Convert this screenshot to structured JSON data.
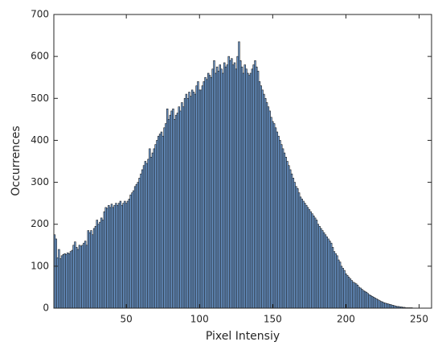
{
  "chart_data": {
    "type": "histogram",
    "xlabel": "Pixel Intensiy",
    "ylabel": "Occurrences",
    "bins": [
      0.5,
      1.5,
      2.5,
      3.5,
      4.5,
      5.5,
      6.5,
      7.5,
      8.5,
      9.5,
      10.5,
      11.5,
      12.5,
      13.5,
      14.5,
      15.5,
      16.5,
      17.5,
      18.5,
      19.5,
      20.5,
      21.5,
      22.5,
      23.5,
      24.5,
      25.5,
      26.5,
      27.5,
      28.5,
      29.5,
      30.5,
      31.5,
      32.5,
      33.5,
      34.5,
      35.5,
      36.5,
      37.5,
      38.5,
      39.5,
      40.5,
      41.5,
      42.5,
      43.5,
      44.5,
      45.5,
      46.5,
      47.5,
      48.5,
      49.5,
      50.5,
      51.5,
      52.5,
      53.5,
      54.5,
      55.5,
      56.5,
      57.5,
      58.5,
      59.5,
      60.5,
      61.5,
      62.5,
      63.5,
      64.5,
      65.5,
      66.5,
      67.5,
      68.5,
      69.5,
      70.5,
      71.5,
      72.5,
      73.5,
      74.5,
      75.5,
      76.5,
      77.5,
      78.5,
      79.5,
      80.5,
      81.5,
      82.5,
      83.5,
      84.5,
      85.5,
      86.5,
      87.5,
      88.5,
      89.5,
      90.5,
      91.5,
      92.5,
      93.5,
      94.5,
      95.5,
      96.5,
      97.5,
      98.5,
      99.5,
      100.5,
      101.5,
      102.5,
      103.5,
      104.5,
      105.5,
      106.5,
      107.5,
      108.5,
      109.5,
      110.5,
      111.5,
      112.5,
      113.5,
      114.5,
      115.5,
      116.5,
      117.5,
      118.5,
      119.5,
      120.5,
      121.5,
      122.5,
      123.5,
      124.5,
      125.5,
      126.5,
      127.5,
      128.5,
      129.5,
      130.5,
      131.5,
      132.5,
      133.5,
      134.5,
      135.5,
      136.5,
      137.5,
      138.5,
      139.5,
      140.5,
      141.5,
      142.5,
      143.5,
      144.5,
      145.5,
      146.5,
      147.5,
      148.5,
      149.5,
      150.5,
      151.5,
      152.5,
      153.5,
      154.5,
      155.5,
      156.5,
      157.5,
      158.5,
      159.5,
      160.5,
      161.5,
      162.5,
      163.5,
      164.5,
      165.5,
      166.5,
      167.5,
      168.5,
      169.5,
      170.5,
      171.5,
      172.5,
      173.5,
      174.5,
      175.5,
      176.5,
      177.5,
      178.5,
      179.5,
      180.5,
      181.5,
      182.5,
      183.5,
      184.5,
      185.5,
      186.5,
      187.5,
      188.5,
      189.5,
      190.5,
      191.5,
      192.5,
      193.5,
      194.5,
      195.5,
      196.5,
      197.5,
      198.5,
      199.5,
      200.5,
      201.5,
      202.5,
      203.5,
      204.5,
      205.5,
      206.5,
      207.5,
      208.5,
      209.5,
      210.5,
      211.5,
      212.5,
      213.5,
      214.5,
      215.5,
      216.5,
      217.5,
      218.5,
      219.5,
      220.5,
      221.5,
      222.5,
      223.5,
      224.5,
      225.5,
      226.5,
      227.5,
      228.5,
      229.5,
      230.5,
      231.5,
      232.5,
      233.5,
      234.5,
      235.5,
      236.5,
      237.5,
      238.5,
      239.5,
      240.5,
      241.5,
      242.5,
      243.5,
      244.5,
      245.5,
      246.5,
      247.5,
      248.5,
      249.5,
      250.5,
      251.5,
      252.5,
      253.5,
      254.5,
      255.5,
      256.5
    ],
    "values": [
      175,
      165,
      120,
      140,
      118,
      125,
      128,
      130,
      128,
      132,
      130,
      135,
      138,
      150,
      158,
      145,
      140,
      150,
      148,
      150,
      155,
      160,
      150,
      185,
      180,
      185,
      175,
      190,
      195,
      210,
      200,
      205,
      215,
      210,
      230,
      240,
      238,
      245,
      240,
      248,
      240,
      245,
      250,
      245,
      250,
      255,
      245,
      250,
      255,
      250,
      255,
      260,
      270,
      275,
      280,
      290,
      295,
      300,
      310,
      320,
      330,
      340,
      350,
      345,
      355,
      380,
      360,
      370,
      380,
      390,
      400,
      410,
      415,
      420,
      410,
      430,
      440,
      475,
      450,
      460,
      470,
      475,
      450,
      460,
      465,
      480,
      470,
      490,
      480,
      500,
      510,
      500,
      515,
      505,
      520,
      515,
      510,
      530,
      540,
      520,
      520,
      530,
      540,
      550,
      545,
      560,
      555,
      550,
      570,
      590,
      560,
      575,
      565,
      580,
      570,
      560,
      585,
      575,
      580,
      600,
      590,
      595,
      580,
      585,
      570,
      600,
      635,
      590,
      575,
      560,
      580,
      570,
      560,
      555,
      560,
      570,
      580,
      590,
      575,
      565,
      540,
      530,
      520,
      510,
      500,
      490,
      480,
      470,
      455,
      445,
      440,
      430,
      420,
      410,
      400,
      390,
      380,
      370,
      360,
      350,
      340,
      330,
      320,
      310,
      300,
      290,
      285,
      275,
      265,
      260,
      255,
      250,
      245,
      240,
      235,
      230,
      225,
      220,
      215,
      210,
      200,
      195,
      190,
      185,
      180,
      175,
      170,
      165,
      160,
      155,
      145,
      135,
      130,
      125,
      115,
      110,
      100,
      95,
      90,
      82,
      78,
      74,
      70,
      66,
      62,
      60,
      58,
      55,
      50,
      48,
      45,
      42,
      40,
      38,
      35,
      32,
      30,
      28,
      26,
      24,
      22,
      20,
      18,
      16,
      15,
      13,
      12,
      11,
      10,
      9,
      8,
      7,
      6,
      5,
      4,
      4,
      3,
      3,
      2,
      2,
      1,
      1,
      1,
      1,
      1,
      0,
      0,
      0,
      0,
      0,
      0,
      0,
      0,
      0,
      0,
      0
    ],
    "color": "#6f9fd8",
    "edgecolor": "#1a1a1a",
    "xlim": [
      0.5,
      258.5
    ],
    "ylim": [
      0,
      700
    ],
    "xticks": [
      50,
      100,
      150,
      200,
      250
    ],
    "yticks": [
      0,
      100,
      200,
      300,
      400,
      500,
      600,
      700
    ]
  }
}
